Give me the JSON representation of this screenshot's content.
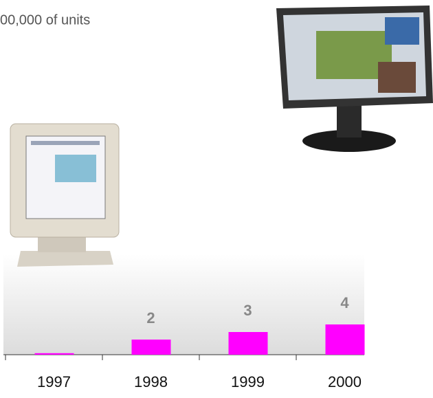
{
  "chart_data": {
    "type": "bar",
    "title": "00,000 of units",
    "categories": [
      "1997",
      "1998",
      "1999",
      "2000"
    ],
    "values": [
      0.2,
      2,
      3,
      4
    ],
    "value_labels": [
      null,
      "2",
      "3",
      "4"
    ],
    "color": "#ff00ff"
  }
}
